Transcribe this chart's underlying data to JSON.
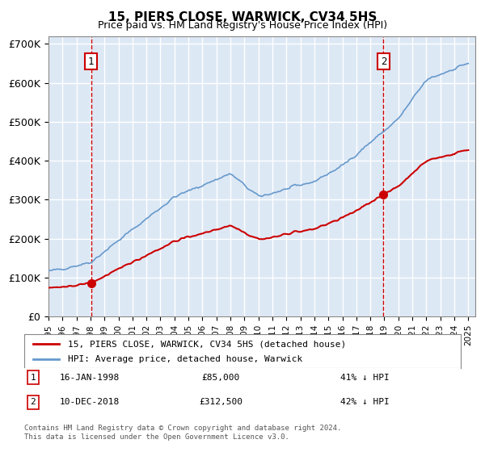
{
  "title": "15, PIERS CLOSE, WARWICK, CV34 5HS",
  "subtitle": "Price paid vs. HM Land Registry's House Price Index (HPI)",
  "xlabel": "",
  "ylabel": "",
  "ylim": [
    0,
    720000
  ],
  "yticks": [
    0,
    100000,
    200000,
    300000,
    400000,
    500000,
    600000,
    700000
  ],
  "ytick_labels": [
    "£0",
    "£100K",
    "£200K",
    "£300K",
    "£400K",
    "£500K",
    "£600K",
    "£700K"
  ],
  "background_color": "#ffffff",
  "plot_bg_color": "#dde8f5",
  "grid_color": "#ffffff",
  "hpi_line_color": "#6699cc",
  "price_line_color": "#cc0000",
  "marker1_date_idx": 3,
  "marker2_date_idx": 24,
  "sale1_date": "16-JAN-1998",
  "sale1_price": 85000,
  "sale1_label": "41% ↓ HPI",
  "sale2_date": "10-DEC-2018",
  "sale2_price": 312500,
  "sale2_label": "42% ↓ HPI",
  "legend_label1": "15, PIERS CLOSE, WARWICK, CV34 5HS (detached house)",
  "legend_label2": "HPI: Average price, detached house, Warwick",
  "footer": "Contains HM Land Registry data © Crown copyright and database right 2024.\nThis data is licensed under the Open Government Licence v3.0.",
  "xstart_year": 1995,
  "xend_year": 2025
}
